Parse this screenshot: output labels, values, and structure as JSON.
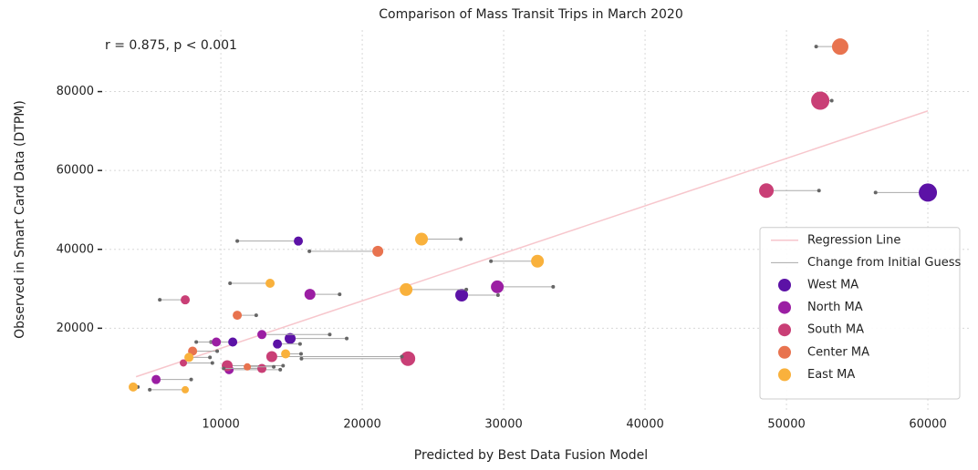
{
  "chart_data": {
    "type": "scatter",
    "title": "Comparison of Mass Transit Trips in March 2020",
    "x_label": "Predicted by Best Data Fusion Model",
    "y_label": "Observed in Smart Card Data (DTPM)",
    "annotation": "r = 0.875, p < 0.001",
    "xlim": [
      1800,
      62900
    ],
    "ylim": [
      -700,
      95600
    ],
    "xticks": [
      10000,
      20000,
      30000,
      40000,
      50000,
      60000
    ],
    "yticks": [
      20000,
      40000,
      60000,
      80000
    ],
    "grid": true,
    "legend": "lower right",
    "regression": {
      "name": "Regression Line",
      "color": "#f7c6cc",
      "x": [
        4000,
        60000
      ],
      "values": [
        7700,
        75100
      ]
    },
    "change_line": {
      "name": "Change from Initial Guess",
      "color": "#aaaaaa"
    },
    "series": [
      {
        "name": "West MA",
        "color": "#5c12a6",
        "x": [
          60000,
          15480,
          27030,
          14900,
          14000,
          10840
        ],
        "x_initial": [
          56300,
          11160,
          29600,
          18900,
          15600,
          9300
        ],
        "values": [
          54400,
          42100,
          28400,
          17400,
          16000,
          16500
        ],
        "sizes": [
          10,
          5,
          7,
          6,
          5,
          5
        ]
      },
      {
        "name": "North MA",
        "color": "#9b1ea3",
        "x": [
          29550,
          16300,
          9680,
          12900,
          5420,
          10580
        ],
        "x_initial": [
          33500,
          18400,
          8260,
          17700,
          7900,
          14200
        ],
        "values": [
          30500,
          28600,
          16500,
          18400,
          7000,
          9500
        ],
        "sizes": [
          7,
          6,
          5,
          5,
          5,
          5
        ]
      },
      {
        "name": "South MA",
        "color": "#c93f76",
        "x": [
          52390,
          48580,
          23230,
          7480,
          13600,
          10450,
          12900,
          7350
        ],
        "x_initial": [
          53200,
          52300,
          15700,
          5680,
          22800,
          14400,
          10200,
          9400
        ],
        "values": [
          77700,
          54900,
          12300,
          27200,
          12800,
          10500,
          9800,
          11200
        ],
        "sizes": [
          10,
          8,
          8,
          5,
          6,
          6,
          5,
          4
        ]
      },
      {
        "name": "Center MA",
        "color": "#e8734f",
        "x": [
          53800,
          21100,
          11160,
          8000,
          11870
        ],
        "x_initial": [
          52100,
          16260,
          12500,
          9740,
          13740
        ],
        "values": [
          91400,
          39500,
          23300,
          14200,
          10200
        ],
        "sizes": [
          9,
          6,
          5,
          5,
          4
        ]
      },
      {
        "name": "East MA",
        "color": "#f9b13c",
        "x": [
          24190,
          32390,
          23100,
          13480,
          14580,
          7740,
          3800,
          7480
        ],
        "x_initial": [
          26970,
          29100,
          27360,
          10650,
          15670,
          9230,
          4130,
          4970
        ],
        "values": [
          42600,
          37000,
          29800,
          31400,
          13500,
          12600,
          5100,
          4400
        ],
        "sizes": [
          7,
          7,
          7,
          5,
          5,
          5,
          5,
          4
        ]
      }
    ]
  }
}
